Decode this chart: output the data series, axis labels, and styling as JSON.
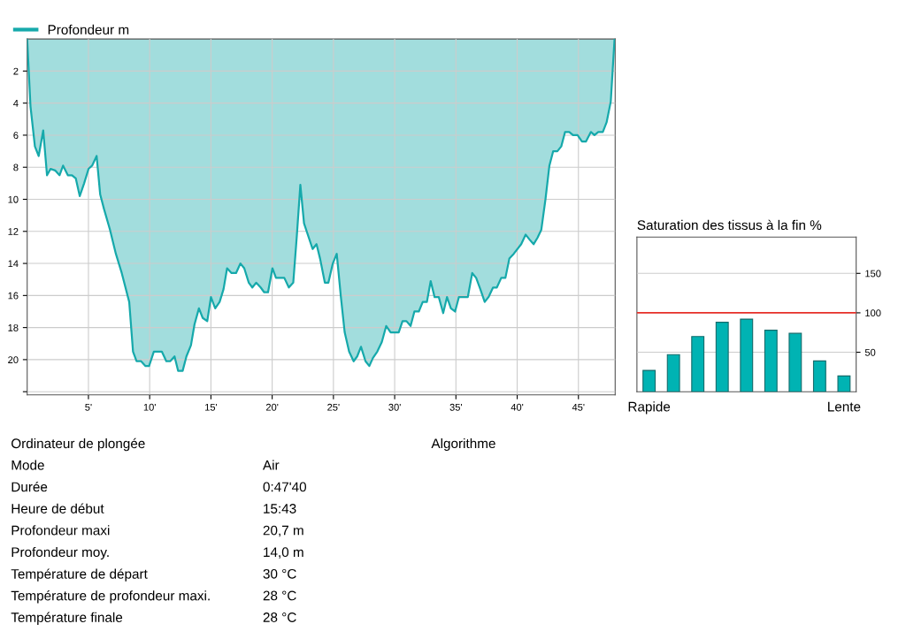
{
  "chart_data": [
    {
      "type": "area",
      "legend": "top left",
      "grid": true,
      "x": [
        0,
        0.27,
        0.63,
        0.94,
        1.31,
        1.62,
        1.91,
        2.28,
        2.64,
        2.93,
        3.32,
        3.66,
        3.97,
        4.29,
        4.65,
        5.01,
        5.3,
        5.67,
        5.96,
        6.27,
        6.76,
        7.24,
        7.72,
        8.33,
        8.64,
        8.93,
        9.3,
        9.66,
        9.95,
        10.34,
        10.99,
        11.36,
        11.67,
        12.03,
        12.32,
        12.69,
        13.0,
        13.37,
        13.66,
        14.02,
        14.33,
        14.7,
        15.0,
        15.35,
        15.71,
        16.03,
        16.32,
        16.68,
        17.05,
        17.41,
        17.72,
        18.09,
        18.38,
        18.69,
        19.06,
        19.35,
        19.66,
        20.02,
        20.31,
        20.99,
        21.36,
        21.72,
        22.01,
        22.3,
        22.6,
        23.3,
        23.62,
        23.91,
        24.3,
        24.59,
        24.95,
        25.27,
        25.61,
        25.92,
        26.28,
        26.65,
        26.94,
        27.25,
        27.62,
        27.93,
        28.22,
        28.58,
        28.95,
        29.31,
        29.67,
        30.33,
        30.64,
        30.96,
        31.3,
        31.61,
        31.97,
        32.29,
        32.63,
        32.94,
        33.26,
        33.6,
        33.96,
        34.27,
        34.59,
        34.93,
        35.24,
        35.97,
        36.33,
        36.65,
        36.99,
        37.35,
        37.66,
        38.03,
        38.34,
        38.7,
        39.04,
        39.36,
        39.72,
        40.33,
        40.69,
        41.0,
        41.34,
        41.66,
        41.97,
        42.31,
        42.63,
        42.94,
        43.28,
        43.6,
        43.91,
        44.25,
        44.56,
        44.93,
        45.29,
        45.61,
        46.02,
        46.31,
        46.62,
        46.99,
        47.3,
        47.64,
        47.95
      ],
      "series": [
        {
          "name": "Profondeur m",
          "color": "#16a9ab",
          "values": [
            0,
            4.2,
            6.7,
            7.3,
            5.7,
            8.5,
            8.1,
            8.2,
            8.5,
            7.9,
            8.5,
            8.5,
            8.7,
            9.8,
            9.0,
            8.1,
            7.9,
            7.3,
            9.7,
            10.6,
            11.9,
            13.4,
            14.6,
            16.4,
            19.5,
            20.1,
            20.1,
            20.4,
            20.4,
            19.5,
            19.5,
            20.1,
            20.1,
            19.8,
            20.7,
            20.7,
            19.8,
            19.1,
            17.8,
            16.8,
            17.4,
            17.6,
            16.1,
            16.8,
            16.4,
            15.6,
            14.3,
            14.6,
            14.6,
            14.0,
            14.3,
            15.2,
            15.5,
            15.2,
            15.5,
            15.8,
            15.8,
            14.3,
            14.9,
            14.9,
            15.5,
            15.2,
            12.3,
            9.1,
            11.5,
            13.1,
            12.8,
            13.7,
            15.2,
            15.2,
            14.0,
            13.4,
            16.1,
            18.3,
            19.5,
            20.1,
            19.8,
            19.2,
            20.1,
            20.4,
            19.9,
            19.5,
            18.9,
            17.9,
            18.3,
            18.3,
            17.6,
            17.6,
            17.9,
            17.0,
            17.0,
            16.4,
            16.4,
            15.1,
            16.1,
            16.1,
            17.1,
            16.1,
            16.8,
            17.0,
            16.1,
            16.1,
            14.6,
            14.9,
            15.6,
            16.4,
            16.1,
            15.5,
            15.5,
            14.9,
            14.9,
            13.7,
            13.4,
            12.8,
            12.2,
            12.5,
            12.8,
            12.4,
            11.9,
            10.0,
            7.9,
            7.0,
            7.0,
            6.7,
            5.8,
            5.8,
            6.0,
            6.0,
            6.4,
            6.4,
            5.8,
            6.0,
            5.8,
            5.8,
            5.2,
            3.9,
            0
          ]
        }
      ],
      "xlim": [
        0,
        48
      ],
      "xticks": [
        {
          "value": 5,
          "label": "5'"
        },
        {
          "value": 10,
          "label": "10'"
        },
        {
          "value": 15,
          "label": "15'"
        },
        {
          "value": 20,
          "label": "20'"
        },
        {
          "value": 25,
          "label": "25'"
        },
        {
          "value": 30,
          "label": "30'"
        },
        {
          "value": 35,
          "label": "35'"
        },
        {
          "value": 40,
          "label": "40'"
        },
        {
          "value": 45,
          "label": "45'"
        }
      ],
      "ylim": [
        22.2,
        0
      ],
      "yticks": [
        2,
        4,
        6,
        8,
        10,
        12,
        14,
        16,
        18,
        20,
        {
          "value": 22,
          "label": null
        }
      ],
      "annotations": [
        "Ordinateur de plongée",
        "Algorithme",
        "Mode",
        "Air",
        "Durée",
        "0:47'40",
        "Heure de début",
        "15:43",
        "Profondeur maxi",
        "20,7 m",
        "Profondeur moy.",
        "14,0 m",
        "Température de départ",
        "30 °C",
        "Température de profondeur maxi.",
        "28 °C",
        "Température finale",
        "28 °C"
      ]
    },
    {
      "type": "bar",
      "title": "Saturation des tissus à la fin %",
      "grid": "y",
      "categories": [
        "Rapide",
        null,
        null,
        null,
        null,
        null,
        null,
        null,
        "Lente"
      ],
      "values": [
        27,
        47,
        70,
        88,
        92,
        78,
        74,
        39,
        20
      ],
      "color": "#00b3b3",
      "ylim": [
        0,
        196
      ],
      "yticks": [
        50,
        100,
        150
      ],
      "ref_lines": [
        {
          "axis": "y",
          "value": 100,
          "color": "#e8302a"
        }
      ]
    }
  ]
}
